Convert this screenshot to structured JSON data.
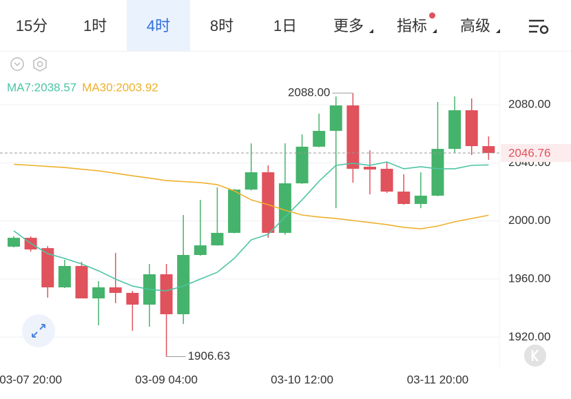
{
  "toolbar": {
    "tabs": [
      "15分",
      "1时",
      "4时",
      "8时",
      "1日",
      "更多",
      "指标",
      "高级"
    ],
    "active": 2
  },
  "chart_data": {
    "type": "candlestick",
    "categories": [
      null,
      "03-07 20:00",
      null,
      null,
      null,
      null,
      null,
      null,
      null,
      "03-09 04:00",
      null,
      null,
      null,
      null,
      null,
      null,
      null,
      "03-10 12:00",
      null,
      null,
      null,
      null,
      null,
      null,
      null,
      "03-11 20:00",
      null,
      null,
      null
    ],
    "open": [
      1982.3,
      1988.4,
      1981.3,
      1954.3,
      1969.0,
      1946.7,
      1954.3,
      1950.5,
      1942.4,
      1963.3,
      1935.8,
      1976.6,
      1983.2,
      1991.8,
      2021.6,
      2033.5,
      1991.8,
      2025.9,
      2051.1,
      2062.0,
      2079.5,
      2037.3,
      2035.9,
      2020.2,
      2011.7,
      2017.4,
      2049.6,
      2076.2,
      2051.5
    ],
    "high": [
      1989.5,
      1989.4,
      1982.7,
      1973.3,
      1971.8,
      1958.6,
      1978.0,
      1951.9,
      1970.4,
      1970.4,
      2004.1,
      2014.5,
      2023.1,
      2022.0,
      2053.4,
      2038.3,
      2053.4,
      2059.6,
      2073.8,
      2085.7,
      2088.0,
      2048.7,
      2040.6,
      2032.1,
      2033.5,
      2081.9,
      2085.7,
      2084.3,
      2058.2
    ],
    "low": [
      1981.8,
      1978.9,
      1947.2,
      1953.8,
      1946.7,
      1928.2,
      1943.4,
      1924.4,
      1927.2,
      1906.63,
      1929.1,
      1976.0,
      1983.0,
      1991.5,
      2021.0,
      1988.4,
      1990.5,
      2025.5,
      2050.8,
      2008.8,
      2026.4,
      2018.3,
      2019.3,
      2011.2,
      2008.8,
      2017.0,
      2046.8,
      2045.4,
      2042.0
    ],
    "close": [
      1988.4,
      1980.4,
      1954.3,
      1969.0,
      1946.7,
      1954.3,
      1950.5,
      1942.4,
      1963.3,
      1935.8,
      1976.6,
      1983.2,
      1991.8,
      2021.6,
      2033.5,
      1991.8,
      2025.9,
      2051.1,
      2062.0,
      2079.5,
      2035.9,
      2035.4,
      2020.2,
      2011.7,
      2017.4,
      2049.6,
      2076.2,
      2051.5,
      2046.76
    ],
    "up_color": "#45b36b",
    "down_color": "#e0525c",
    "series": [
      {
        "name": "MA7:2038.57",
        "color": "#4cc4a4",
        "values": [
          1993.2,
          1984.6,
          1977.5,
          1974.2,
          1970.4,
          1965.7,
          1960.0,
          1955.2,
          1952.9,
          1951.9,
          1955.2,
          1960.0,
          1964.7,
          1974.2,
          1987.0,
          1990.8,
          2002.7,
          2014.5,
          2027.3,
          2038.3,
          2039.7,
          2038.3,
          2040.6,
          2035.9,
          2037.3,
          2035.9,
          2035.9,
          2038.3,
          2038.57
        ]
      },
      {
        "name": "MA30:2003.92",
        "color": "#eeb02c",
        "values": [
          2039.0,
          2038.3,
          2037.5,
          2036.8,
          2035.6,
          2034.5,
          2032.8,
          2031.1,
          2029.5,
          2027.8,
          2027.1,
          2026.4,
          2025.0,
          2020.7,
          2014.5,
          2011.2,
          2007.4,
          2004.1,
          2002.7,
          2001.7,
          2000.3,
          1998.9,
          1997.5,
          1995.6,
          1994.6,
          1996.5,
          1999.4,
          2001.7,
          2003.92
        ]
      }
    ],
    "ylim": [
      1900.7,
      2116.5
    ],
    "yticks": [
      {
        "value": 1920,
        "label": "1920.00"
      },
      {
        "value": 1960,
        "label": "1960.00"
      },
      {
        "value": 2000,
        "label": "2000.00"
      },
      {
        "value": 2040,
        "label": "2040.00"
      },
      {
        "value": 2080,
        "label": "2080.00"
      }
    ],
    "grid": true,
    "last_price": 2046.76,
    "annotations": [
      {
        "text": "2088.00",
        "value": 2088.0,
        "index": 20
      },
      {
        "text": "1906.63",
        "value": 1906.63,
        "index": 9
      }
    ]
  }
}
